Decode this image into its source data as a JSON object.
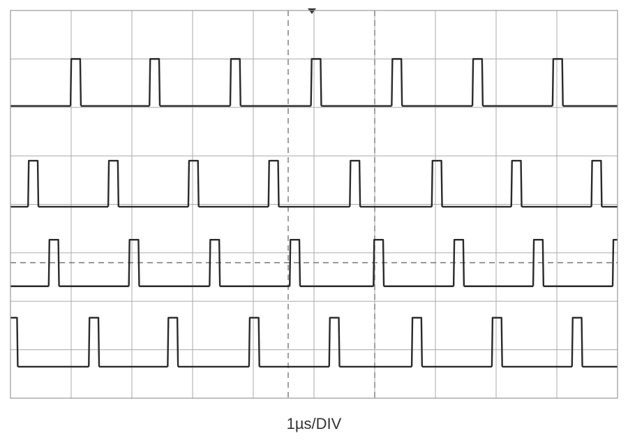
{
  "chart_data": {
    "type": "pulse",
    "xlabel": "1µs/DIV",
    "xlim": [
      0,
      10
    ],
    "ylim": [
      0,
      8
    ],
    "xticks": [
      0,
      1,
      2,
      3,
      4,
      5,
      6,
      7,
      8,
      9,
      10
    ],
    "yticks": [
      0,
      1,
      2,
      3,
      4,
      5,
      6,
      7,
      8
    ],
    "grid": true,
    "pulse_width": 0.17,
    "series": [
      {
        "color": "#2a2a2a",
        "low": 6.03,
        "high": 7.0,
        "starts": [
          0.99,
          2.29,
          3.62,
          4.95,
          6.28,
          7.61,
          8.93
        ]
      },
      {
        "color": "#2a2a2a",
        "low": 3.95,
        "high": 4.9,
        "starts": [
          0.29,
          1.61,
          2.93,
          4.25,
          5.59,
          6.94,
          8.25,
          9.57
        ]
      },
      {
        "color": "#2a2a2a",
        "low": 2.31,
        "high": 3.27,
        "starts": [
          0.63,
          1.95,
          3.28,
          4.6,
          5.98,
          7.3,
          8.61,
          9.92
        ]
      },
      {
        "color": "#2a2a2a",
        "low": 0.65,
        "high": 1.66,
        "starts": [
          -0.05,
          1.29,
          2.59,
          3.93,
          5.25,
          6.61,
          7.93,
          9.25
        ]
      }
    ]
  }
}
